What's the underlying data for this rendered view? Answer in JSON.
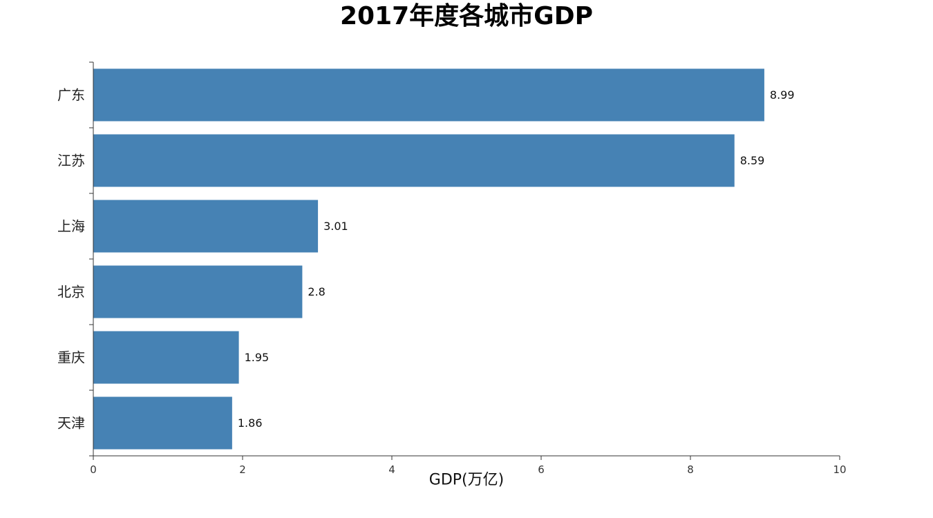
{
  "chart_data": {
    "type": "bar",
    "orientation": "horizontal",
    "title": "2017年度各城市GDP",
    "xlabel": "GDP(万亿)",
    "ylabel": "",
    "categories": [
      "广东",
      "江苏",
      "上海",
      "北京",
      "重庆",
      "天津"
    ],
    "values": [
      8.99,
      8.59,
      3.01,
      2.8,
      1.95,
      1.86
    ],
    "xlim": [
      0,
      10
    ],
    "xticks": [
      0,
      2,
      4,
      6,
      8,
      10
    ],
    "bar_color": "#4682b4",
    "grid": false,
    "legend": false
  }
}
